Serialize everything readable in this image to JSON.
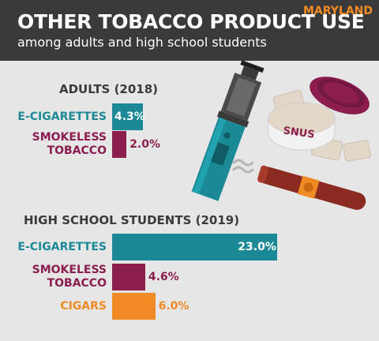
{
  "header": {
    "title": "OTHER TOBACCO PRODUCT USE",
    "subtitle": "among adults and high school students",
    "state": "MARYLAND"
  },
  "illustration": {
    "snus_label": "SNUS",
    "colors": {
      "pen": "#1b8a96",
      "tin": "#8b1e4f",
      "pouch": "#e3d7c8",
      "cigar": "#8a2a20",
      "band": "#ef8a25"
    }
  },
  "chart_data": [
    {
      "type": "bar",
      "orientation": "horizontal",
      "title": "ADULTS (2018)",
      "categories": [
        "E-CIGARETTES",
        "SMOKELESS TOBACCO"
      ],
      "display_labels": [
        [
          "E-CIGARETTES"
        ],
        [
          "SMOKELESS",
          "TOBACCO"
        ]
      ],
      "values": [
        4.3,
        2.0
      ],
      "value_labels": [
        "4.3%",
        "2.0%"
      ],
      "colors": [
        "#1b8a96",
        "#8b1e4f"
      ],
      "xlim": [
        0,
        23.0
      ]
    },
    {
      "type": "bar",
      "orientation": "horizontal",
      "title": "HIGH SCHOOL STUDENTS (2019)",
      "categories": [
        "E-CIGARETTES",
        "SMOKELESS TOBACCO",
        "CIGARS"
      ],
      "display_labels": [
        [
          "E-CIGARETTES"
        ],
        [
          "SMOKELESS",
          "TOBACCO"
        ],
        [
          "CIGARS"
        ]
      ],
      "values": [
        23.0,
        4.6,
        6.0
      ],
      "value_labels": [
        "23.0%",
        "4.6%",
        "6.0%"
      ],
      "colors": [
        "#1b8a96",
        "#8b1e4f",
        "#ef8a25"
      ],
      "xlim": [
        0,
        23.0
      ]
    }
  ]
}
